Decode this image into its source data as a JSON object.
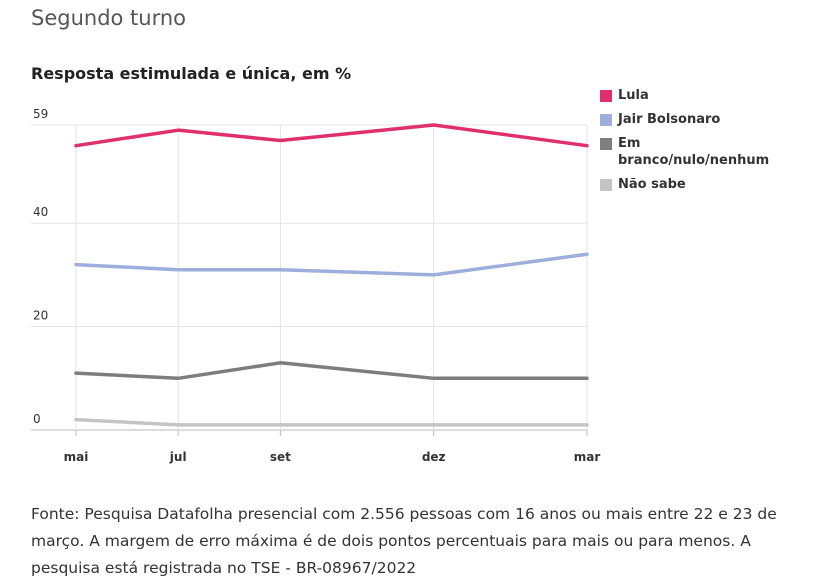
{
  "header": {
    "title": "Segundo turno",
    "subtitle": "Resposta estimulada e única, em %"
  },
  "chart_data": {
    "type": "line",
    "title": "Segundo turno",
    "subtitle": "Resposta estimulada e única, em %",
    "x": [
      "mai",
      "jul",
      "set",
      "dez",
      "mar"
    ],
    "x_positions": [
      0,
      2,
      4,
      7,
      10
    ],
    "ylim": [
      0,
      59
    ],
    "yticks": [
      0,
      20,
      40,
      59
    ],
    "grid": true,
    "legend_position": "right",
    "series": [
      {
        "name": "Lula",
        "color": "#e0306c",
        "values": [
          55,
          58,
          56,
          59,
          55
        ]
      },
      {
        "name": "Jair Bolsonaro",
        "color": "#9eaedc",
        "values": [
          32,
          31,
          31,
          30,
          34
        ]
      },
      {
        "name": "Em branco/nulo/nenhum",
        "color": "#7d7d7d",
        "values": [
          11,
          10,
          13,
          10,
          10
        ]
      },
      {
        "name": "Não sabe",
        "color": "#c4c4c4",
        "values": [
          2,
          1,
          1,
          1,
          1
        ]
      }
    ]
  },
  "legend": {
    "items": [
      {
        "label": "Lula",
        "color": "#e0306c"
      },
      {
        "label": "Jair Bolsonaro",
        "color": "#9eaedc"
      },
      {
        "label": "Em branco/nulo/nenhum",
        "color": "#7d7d7d"
      },
      {
        "label": "Não sabe",
        "color": "#c4c4c4"
      }
    ]
  },
  "footer": {
    "source": "Fonte: Pesquisa Datafolha presencial com 2.556 pessoas com 16 anos ou mais entre 22 e 23 de março. A margem de erro máxima é de dois pontos percentuais para mais ou para menos. A pesquisa está registrada no TSE - BR-08967/2022"
  }
}
